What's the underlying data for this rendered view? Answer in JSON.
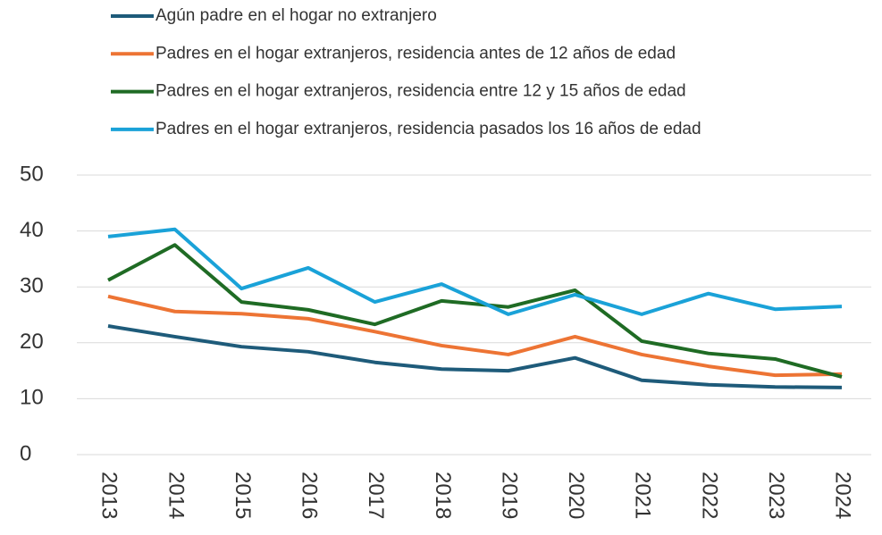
{
  "chart_data": {
    "type": "line",
    "categories": [
      "2013",
      "2014",
      "2015",
      "2016",
      "2017",
      "2018",
      "2019",
      "2020",
      "2021",
      "2022",
      "2023",
      "2024"
    ],
    "series": [
      {
        "name": "Agún padre en el hogar no extranjero",
        "color": "#1e5b7a",
        "values": [
          23.0,
          21.1,
          19.3,
          18.4,
          16.5,
          15.3,
          15.0,
          17.3,
          13.3,
          12.5,
          12.1,
          12.0
        ]
      },
      {
        "name": "Padres en el hogar extranjeros, residencia antes de 12 años de edad",
        "color": "#ed7434",
        "values": [
          28.3,
          25.6,
          25.2,
          24.3,
          22.0,
          19.5,
          17.9,
          21.1,
          17.9,
          15.8,
          14.2,
          14.4
        ]
      },
      {
        "name": "Padres en el hogar extranjeros, residencia entre 12 y 15 años de edad",
        "color": "#1f6b24",
        "values": [
          31.2,
          37.5,
          27.3,
          25.9,
          23.3,
          27.5,
          26.4,
          29.4,
          20.3,
          18.1,
          17.1,
          13.9
        ]
      },
      {
        "name": "Padres en el hogar extranjeros, residencia pasados los 16 años de edad",
        "color": "#1aa2d8",
        "values": [
          39.0,
          40.3,
          29.7,
          33.4,
          27.3,
          30.5,
          25.1,
          28.6,
          25.1,
          28.8,
          26.0,
          26.5
        ]
      }
    ],
    "ylim": [
      0,
      50
    ],
    "yticks": [
      0,
      10,
      20,
      30,
      40,
      50
    ],
    "grid": true,
    "legend": "top"
  }
}
